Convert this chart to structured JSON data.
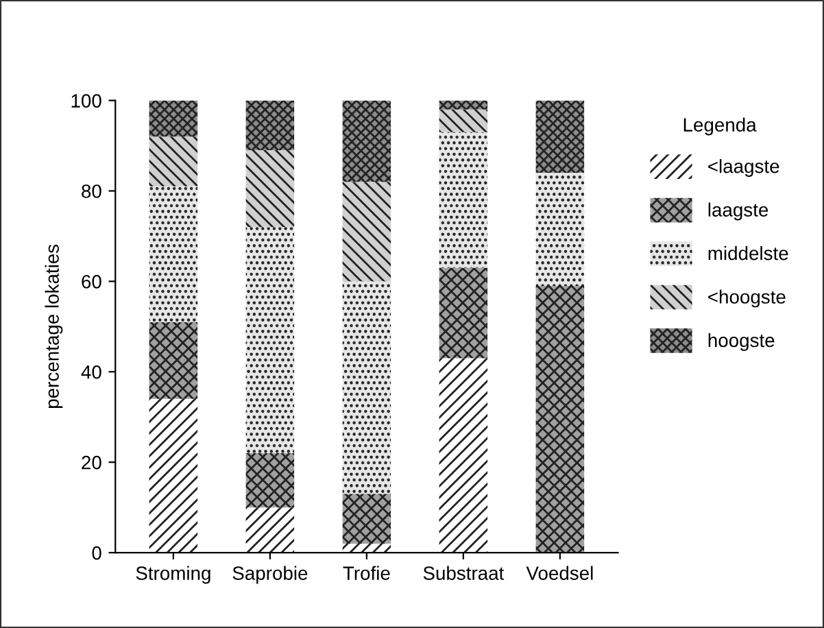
{
  "chart_data": {
    "type": "bar",
    "stacked": true,
    "ylabel": "percentage lokaties",
    "legend_title": "Legenda",
    "categories": [
      "Stroming",
      "Saprobie",
      "Trofie",
      "Substraat",
      "Voedsel"
    ],
    "series": [
      {
        "name": "<laagste",
        "color": "#ffffff",
        "values": [
          34,
          10,
          2,
          43,
          0
        ]
      },
      {
        "name": "laagste",
        "color": "#a0a0a0",
        "values": [
          17,
          12,
          11,
          20,
          59
        ]
      },
      {
        "name": "middelste",
        "color": "#e6e6e6",
        "values": [
          30,
          50,
          47,
          30,
          25
        ]
      },
      {
        "name": "<hoogste",
        "color": "#d0d0d0",
        "values": [
          11,
          17,
          22,
          5,
          0
        ]
      },
      {
        "name": "hoogste",
        "color": "#8c8c8c",
        "values": [
          8,
          11,
          18,
          2,
          16
        ]
      }
    ],
    "ylim": [
      0,
      100
    ],
    "yticks": [
      0,
      20,
      40,
      60,
      80,
      100
    ],
    "grid": false,
    "legend": "top right"
  }
}
